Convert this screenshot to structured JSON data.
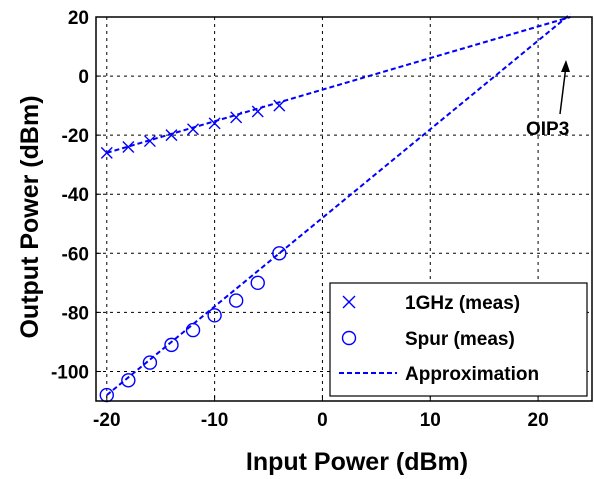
{
  "chart_data": {
    "type": "line",
    "xlabel": "Input Power (dBm)",
    "ylabel": "Output Power (dBm)",
    "xlim": [
      -21,
      25
    ],
    "ylim": [
      -110,
      20
    ],
    "xticks": [
      -20,
      -10,
      0,
      10,
      20
    ],
    "yticks": [
      -100,
      -80,
      -60,
      -40,
      -20,
      0,
      20
    ],
    "xtick_labels": [
      "-20",
      "-10",
      "0",
      "10",
      "20"
    ],
    "ytick_labels": [
      "-100",
      "-80",
      "-60",
      "-40",
      "-20",
      "0",
      "20"
    ],
    "grid": true,
    "legend_position": "bottom-right",
    "series": [
      {
        "name": "1GHz (meas)",
        "marker": "x",
        "x": [
          -20,
          -18,
          -16,
          -14,
          -12,
          -10,
          -8,
          -6,
          -4
        ],
        "y": [
          -26,
          -24,
          -22,
          -20,
          -18,
          -16,
          -14,
          -12,
          -10
        ]
      },
      {
        "name": "Spur (meas)",
        "marker": "o",
        "x": [
          -20,
          -18,
          -16,
          -14,
          -12,
          -10,
          -8,
          -6,
          -4
        ],
        "y": [
          -108,
          -103,
          -97,
          -91,
          -86,
          -81,
          -76,
          -70,
          -60
        ]
      },
      {
        "name": "Approximation",
        "style": "dashed",
        "segments": [
          {
            "x": [
              -20,
              23
            ],
            "y": [
              -26,
              20
            ]
          },
          {
            "x": [
              -20,
              23
            ],
            "y": [
              -108,
              21
            ]
          }
        ]
      }
    ],
    "annotations": [
      {
        "text": "OIP3",
        "x": 22,
        "y": 17
      }
    ],
    "colors": {
      "series": "#0000ff",
      "axes": "#000000",
      "grid": "#000000",
      "background": "#ffffff"
    }
  }
}
